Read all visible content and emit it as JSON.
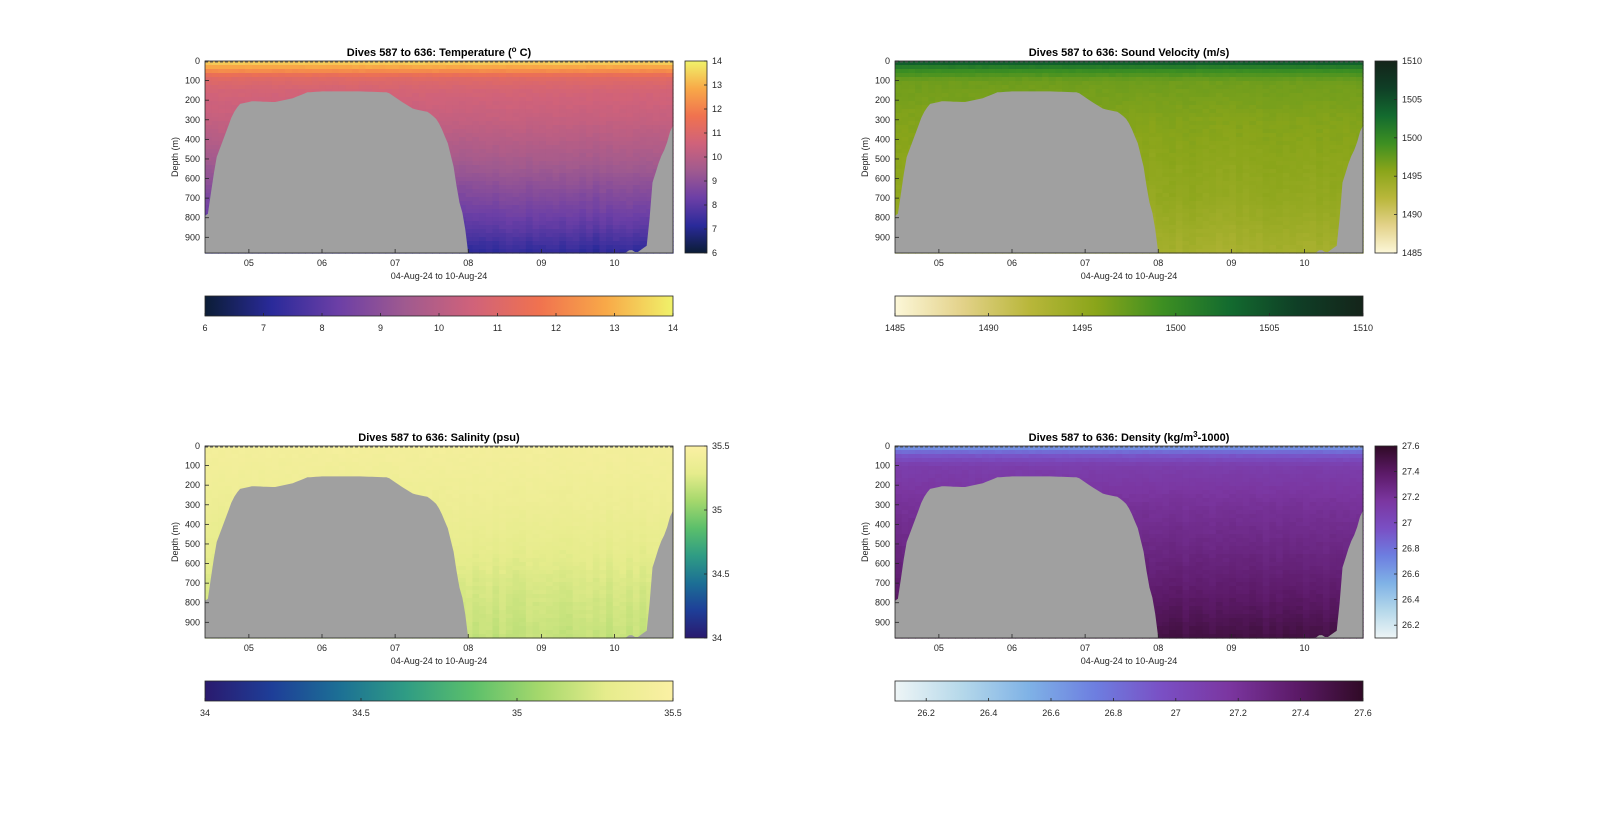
{
  "figure": {
    "xlabel": "04-Aug-24 to 10-Aug-24",
    "ylabel": "Depth (m)",
    "x_ticks": [
      "05",
      "06",
      "07",
      "08",
      "09",
      "10"
    ],
    "y_ticks": [
      "0",
      "100",
      "200",
      "300",
      "400",
      "500",
      "600",
      "700",
      "800",
      "900"
    ],
    "x_range_days": [
      4.4,
      10.8
    ],
    "y_range_m": [
      0,
      980
    ],
    "bathymetry_color": "#a0a0a0"
  },
  "chart_data": [
    {
      "type": "heatmap",
      "title": "Dives 587 to 636: Temperature (",
      "title_sup": "o",
      "title_suffix": " C)",
      "xlabel": "04-Aug-24 to 10-Aug-24",
      "ylabel": "Depth (m)",
      "clim": [
        6,
        14
      ],
      "colorbar_ticks": [
        "6",
        "7",
        "8",
        "9",
        "10",
        "11",
        "12",
        "13",
        "14"
      ],
      "colorbar_tick_values": [
        6,
        7,
        8,
        9,
        10,
        11,
        12,
        13,
        14
      ],
      "colormap": [
        "#0b1d36",
        "#2a2a9a",
        "#6c3fa6",
        "#a05a8f",
        "#d0627a",
        "#f0724f",
        "#f8a948",
        "#f0f26a"
      ],
      "profile": [
        [
          0,
          13.6
        ],
        [
          40,
          12.6
        ],
        [
          80,
          11.2
        ],
        [
          150,
          10.7
        ],
        [
          300,
          10.3
        ],
        [
          500,
          9.6
        ],
        [
          700,
          8.7
        ],
        [
          850,
          8.0
        ],
        [
          980,
          7.2
        ]
      ]
    },
    {
      "type": "heatmap",
      "title": "Dives 587 to 636: Sound Velocity (m/s)",
      "xlabel": "04-Aug-24 to 10-Aug-24",
      "ylabel": "Depth (m)",
      "clim": [
        1485,
        1510
      ],
      "colorbar_ticks": [
        "1485",
        "1490",
        "1495",
        "1500",
        "1505",
        "1510"
      ],
      "colorbar_tick_values": [
        1485,
        1490,
        1495,
        1500,
        1505,
        1510
      ],
      "colormap": [
        "#fcf7d8",
        "#e3d28a",
        "#b9b73b",
        "#8aa51a",
        "#3d8f22",
        "#136b2f",
        "#0f3f26",
        "#14241a"
      ],
      "profile": [
        [
          0,
          1505
        ],
        [
          40,
          1500
        ],
        [
          100,
          1497
        ],
        [
          300,
          1496
        ],
        [
          500,
          1495.5
        ],
        [
          700,
          1495
        ],
        [
          850,
          1494.2
        ],
        [
          980,
          1493.5
        ]
      ]
    },
    {
      "type": "heatmap",
      "title": "Dives 587 to 636: Salinity (psu)",
      "xlabel": "04-Aug-24 to 10-Aug-24",
      "ylabel": "Depth (m)",
      "clim": [
        34,
        35.5
      ],
      "colorbar_ticks": [
        "34",
        "34.5",
        "35",
        "35.5"
      ],
      "colorbar_tick_values": [
        34,
        34.5,
        35,
        35.5
      ],
      "colormap": [
        "#2a1a6e",
        "#1e3e98",
        "#1c6f95",
        "#2f9c84",
        "#5bbf6b",
        "#a5d86c",
        "#e6ec8c",
        "#fbf0a4"
      ],
      "profile": [
        [
          0,
          35.42
        ],
        [
          100,
          35.4
        ],
        [
          300,
          35.36
        ],
        [
          500,
          35.3
        ],
        [
          700,
          35.24
        ],
        [
          850,
          35.2
        ],
        [
          980,
          35.17
        ]
      ]
    },
    {
      "type": "heatmap",
      "title": "Dives 587 to 636: Density (kg/m",
      "title_sup": "3",
      "title_suffix": "-1000)",
      "xlabel": "04-Aug-24 to 10-Aug-24",
      "ylabel": "Depth (m)",
      "clim": [
        26.1,
        27.6
      ],
      "colorbar_ticks": [
        "26.2",
        "26.4",
        "26.6",
        "26.8",
        "27",
        "27.2",
        "27.4",
        "27.6"
      ],
      "colorbar_tick_values": [
        26.2,
        26.4,
        26.6,
        26.8,
        27,
        27.2,
        27.4,
        27.6
      ],
      "colormap": [
        "#eef5f6",
        "#b5d8ea",
        "#7fb2e6",
        "#6d7ee0",
        "#7a4fc4",
        "#7b36a0",
        "#5c1a68",
        "#300a26"
      ],
      "profile": [
        [
          0,
          26.6
        ],
        [
          40,
          26.9
        ],
        [
          100,
          27.1
        ],
        [
          300,
          27.2
        ],
        [
          500,
          27.27
        ],
        [
          700,
          27.35
        ],
        [
          850,
          27.42
        ],
        [
          980,
          27.5
        ]
      ]
    }
  ]
}
